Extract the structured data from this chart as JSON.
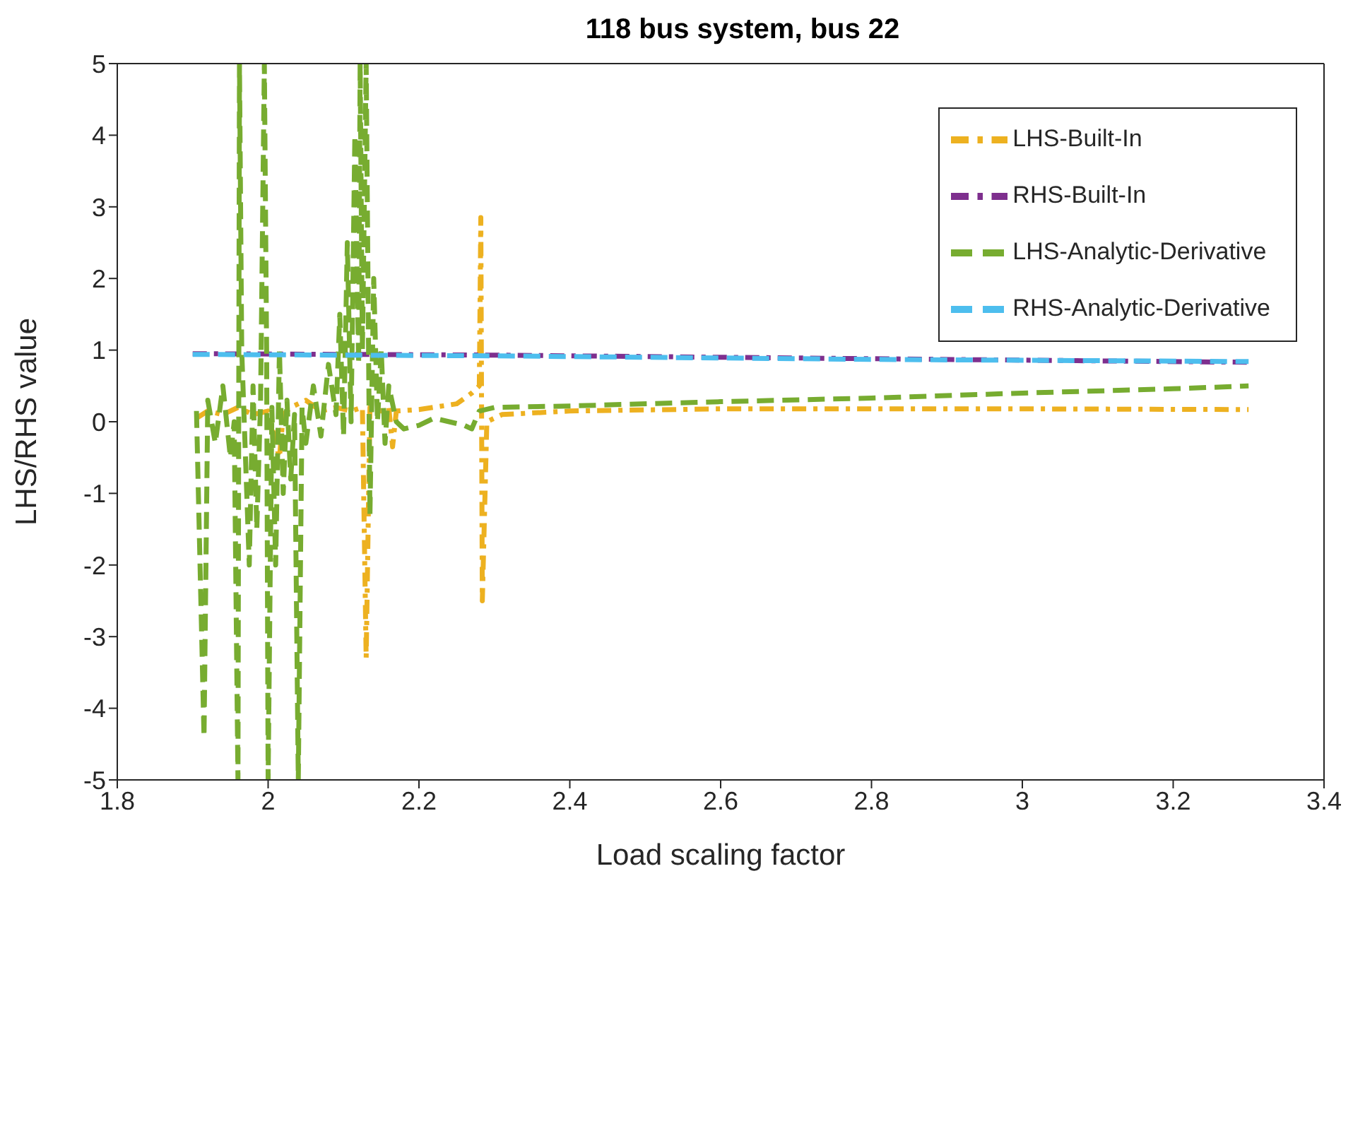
{
  "chart_data": {
    "type": "line",
    "title": "118 bus system, bus 22",
    "xlabel": "Load scaling factor",
    "ylabel": "LHS/RHS value",
    "xlim": [
      1.8,
      3.4
    ],
    "xticks": [
      1.8,
      2,
      2.2,
      2.4,
      2.6,
      2.8,
      3,
      3.2,
      3.4
    ],
    "ylim": [
      -5,
      5
    ],
    "yticks": [
      -5,
      -4,
      -3,
      -2,
      -1,
      0,
      1,
      2,
      3,
      4,
      5
    ],
    "legend": "top right",
    "marker": "none",
    "series": [
      {
        "name": "LHS-Built-In",
        "color": "#edb120",
        "line_style": "dashdot",
        "x": [
          1.905,
          1.92,
          1.94,
          1.96,
          1.98,
          2.0,
          2.01,
          2.015,
          2.02,
          2.03,
          2.05,
          2.07,
          2.09,
          2.11,
          2.125,
          2.13,
          2.135,
          2.14,
          2.15,
          2.16,
          2.165,
          2.17,
          2.2,
          2.25,
          2.27,
          2.28,
          2.282,
          2.284,
          2.29,
          2.31,
          2.4,
          2.6,
          3.0,
          3.3
        ],
        "values": [
          0.05,
          0.15,
          0.1,
          0.2,
          0.1,
          0.15,
          -0.3,
          -0.5,
          0.1,
          0.2,
          0.3,
          0.15,
          0.2,
          0.15,
          0.2,
          -3.3,
          0.2,
          0.2,
          0.15,
          0.2,
          -0.35,
          0.15,
          0.17,
          0.25,
          0.4,
          0.5,
          2.85,
          -2.5,
          0.0,
          0.1,
          0.15,
          0.18,
          0.18,
          0.17
        ]
      },
      {
        "name": "RHS-Built-In",
        "color": "#7e2f8e",
        "line_style": "dashdot",
        "x": [
          1.9,
          2.3,
          2.8,
          3.3
        ],
        "values": [
          0.95,
          0.93,
          0.88,
          0.83
        ]
      },
      {
        "name": "LHS-Analytic-Derivative",
        "color": "#77ac30",
        "line_style": "dashed",
        "x": [
          1.905,
          1.915,
          1.92,
          1.93,
          1.94,
          1.95,
          1.955,
          1.96,
          1.962,
          1.965,
          1.97,
          1.975,
          1.98,
          1.985,
          1.99,
          1.995,
          1.998,
          2.0,
          2.005,
          2.01,
          2.015,
          2.02,
          2.025,
          2.03,
          2.035,
          2.04,
          2.045,
          2.05,
          2.06,
          2.07,
          2.08,
          2.09,
          2.095,
          2.1,
          2.105,
          2.11,
          2.115,
          2.12,
          2.122,
          2.125,
          2.13,
          2.135,
          2.14,
          2.145,
          2.15,
          2.155,
          2.16,
          2.17,
          2.18,
          2.2,
          2.22,
          2.24,
          2.26,
          2.27,
          2.28,
          2.3,
          2.4,
          2.6,
          2.8,
          3.0,
          3.2,
          3.3
        ],
        "values": [
          0.15,
          -4.4,
          0.3,
          -0.3,
          0.5,
          -0.5,
          0.0,
          -5,
          5,
          1,
          -0.5,
          -2,
          0.5,
          -1.5,
          0.3,
          5,
          1,
          -5,
          0.2,
          -2,
          1,
          -1,
          0.3,
          -0.8,
          0.1,
          -5,
          0.2,
          -0.3,
          0.5,
          -0.2,
          0.8,
          0.1,
          1.5,
          -0.2,
          2.5,
          0.0,
          4,
          0.8,
          5,
          1,
          5,
          -1.3,
          2,
          0,
          1,
          -0.3,
          0.5,
          0.0,
          -0.1,
          -0.05,
          0.05,
          0.0,
          -0.05,
          -0.1,
          0.15,
          0.2,
          0.22,
          0.28,
          0.33,
          0.4,
          0.46,
          0.5
        ]
      },
      {
        "name": "RHS-Analytic-Derivative",
        "color": "#4dbeee",
        "line_style": "dashed",
        "x": [
          1.9,
          2.3,
          2.8,
          3.3
        ],
        "values": [
          0.94,
          0.92,
          0.87,
          0.84
        ]
      }
    ]
  }
}
